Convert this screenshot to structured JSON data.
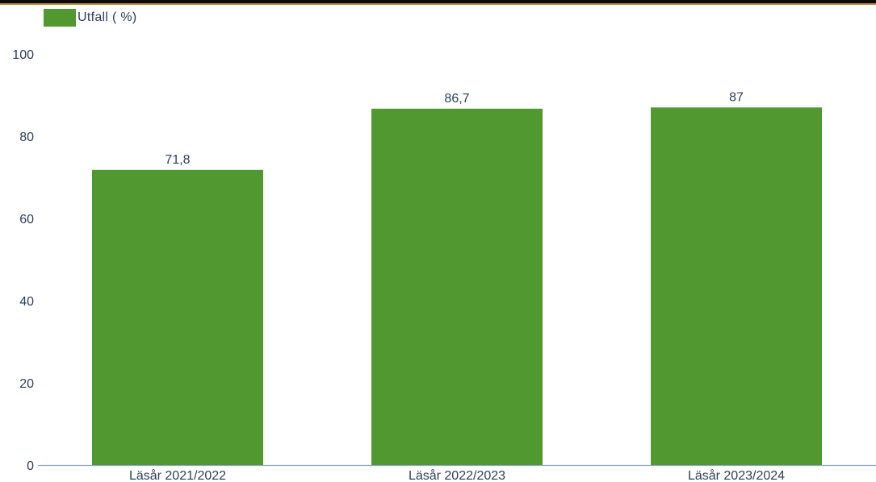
{
  "chart_data": {
    "type": "bar",
    "categories": [
      "Läsår 2021/2022",
      "Läsår 2022/2023",
      "Läsår 2023/2024"
    ],
    "series": [
      {
        "name": "Utfall ( %)",
        "values": [
          71.8,
          86.7,
          87
        ],
        "value_labels": [
          "71,8",
          "86,7",
          "87"
        ]
      }
    ],
    "ylim": [
      0,
      100
    ],
    "yticks": [
      0,
      20,
      40,
      60,
      80,
      100
    ],
    "legend_position": "top-left",
    "grid": false,
    "bar_color": "#529830",
    "text_color": "#2b3f5c",
    "axis_color": "#8fa6c2"
  }
}
